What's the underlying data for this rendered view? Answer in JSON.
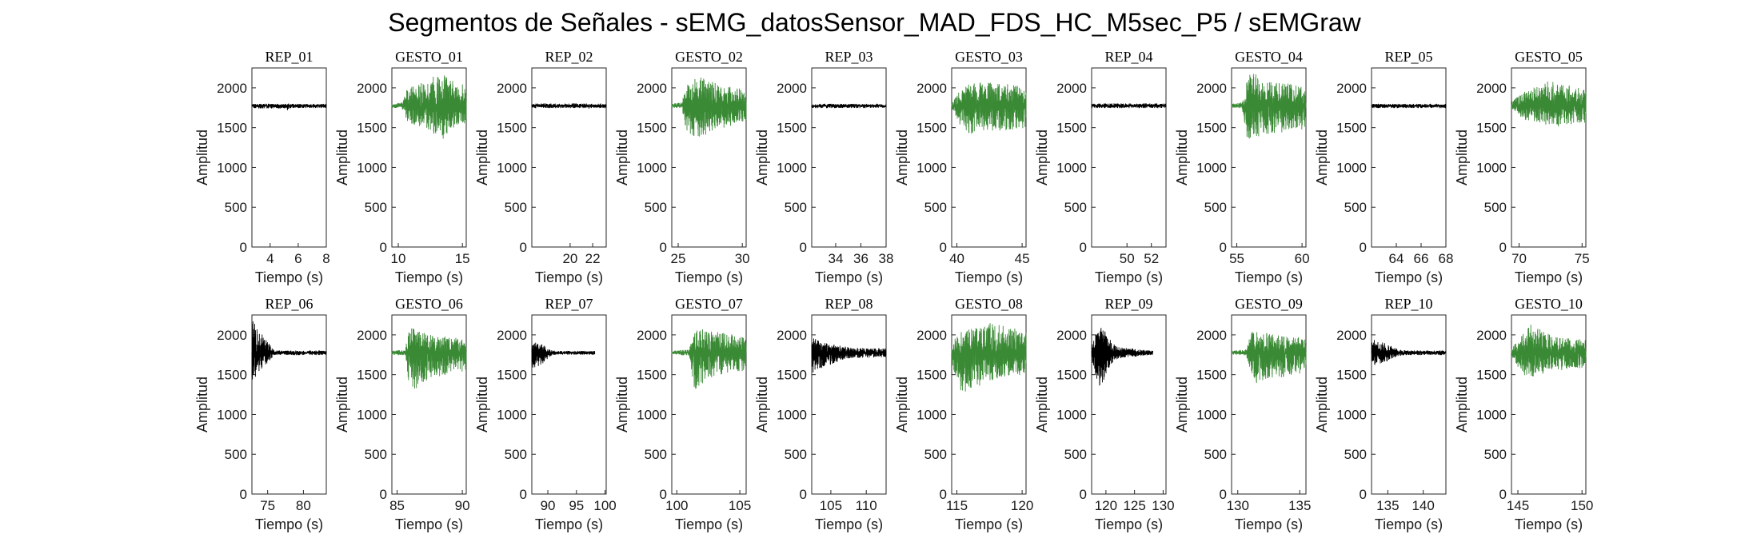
{
  "title": "Segmentos de Señales - sEMG_datosSensor_MAD_FDS_HC_M5sec_P5 / sEMGraw",
  "colors": {
    "rep": "#000000",
    "gesto": "#3a8a35"
  },
  "chart_data": [
    {
      "type": "line",
      "title": "REP_01",
      "kind": "rep",
      "xlabel": "Tiempo (s)",
      "ylabel": "Amplitud",
      "xlim": [
        2.7,
        8
      ],
      "xticks": [
        4,
        6,
        8
      ],
      "ylim": [
        0,
        2250
      ],
      "yticks": [
        0,
        500,
        1000,
        1500,
        2000
      ],
      "series": [
        {
          "baseline": 1775,
          "x": [
            2.7,
            8
          ],
          "envelope": [
            [
              2.7,
              1740,
              1800
            ],
            [
              5.2,
              1740,
              1800
            ],
            [
              5.25,
              1690,
              1810
            ],
            [
              5.35,
              1745,
              1800
            ],
            [
              8,
              1745,
              1800
            ]
          ]
        }
      ]
    },
    {
      "type": "line",
      "title": "GESTO_01",
      "kind": "gesto",
      "xlabel": "Tiempo (s)",
      "ylabel": "Amplitud",
      "xlim": [
        9.5,
        15.3
      ],
      "xticks": [
        10,
        15
      ],
      "ylim": [
        0,
        2250
      ],
      "yticks": [
        0,
        500,
        1000,
        1500,
        2000
      ],
      "series": [
        {
          "baseline": 1775,
          "x": [
            9.5,
            15.3
          ],
          "envelope": [
            [
              9.5,
              1750,
              1800
            ],
            [
              10.3,
              1740,
              1820
            ],
            [
              10.6,
              1580,
              1980
            ],
            [
              12.5,
              1450,
              2130
            ],
            [
              13.5,
              1350,
              2200
            ],
            [
              14.5,
              1500,
              2050
            ],
            [
              15.3,
              1550,
              2050
            ]
          ]
        }
      ]
    },
    {
      "type": "line",
      "title": "REP_02",
      "kind": "rep",
      "xlabel": "Tiempo (s)",
      "ylabel": "Amplitud",
      "xlim": [
        16.6,
        23.2
      ],
      "xticks": [
        20,
        22
      ],
      "ylim": [
        0,
        2250
      ],
      "yticks": [
        0,
        500,
        1000,
        1500,
        2000
      ],
      "series": [
        {
          "baseline": 1775,
          "x": [
            16.6,
            23.2
          ],
          "envelope": [
            [
              16.6,
              1745,
              1805
            ],
            [
              21.5,
              1745,
              1805
            ],
            [
              21.6,
              1640,
              1800
            ],
            [
              21.7,
              1745,
              1805
            ],
            [
              23.2,
              1745,
              1805
            ]
          ]
        }
      ]
    },
    {
      "type": "line",
      "title": "GESTO_02",
      "kind": "gesto",
      "xlabel": "Tiempo (s)",
      "ylabel": "Amplitud",
      "xlim": [
        24.5,
        30.3
      ],
      "xticks": [
        25,
        30
      ],
      "ylim": [
        0,
        2250
      ],
      "yticks": [
        0,
        500,
        1000,
        1500,
        2000
      ],
      "series": [
        {
          "baseline": 1775,
          "x": [
            24.5,
            30.3
          ],
          "envelope": [
            [
              24.5,
              1750,
              1800
            ],
            [
              25.3,
              1740,
              1820
            ],
            [
              25.6,
              1450,
              2050
            ],
            [
              26.5,
              1350,
              2150
            ],
            [
              28,
              1480,
              2060
            ],
            [
              30.3,
              1560,
              1980
            ]
          ]
        }
      ]
    },
    {
      "type": "line",
      "title": "REP_03",
      "kind": "rep",
      "xlabel": "Tiempo (s)",
      "ylabel": "Amplitud",
      "xlim": [
        32.1,
        38
      ],
      "xticks": [
        34,
        36,
        38
      ],
      "ylim": [
        0,
        2250
      ],
      "yticks": [
        0,
        500,
        1000,
        1500,
        2000
      ],
      "series": [
        {
          "baseline": 1775,
          "x": [
            32.1,
            38
          ],
          "envelope": [
            [
              32.1,
              1745,
              1800
            ],
            [
              38,
              1745,
              1800
            ]
          ]
        }
      ]
    },
    {
      "type": "line",
      "title": "GESTO_03",
      "kind": "gesto",
      "xlabel": "Tiempo (s)",
      "ylabel": "Amplitud",
      "xlim": [
        39.6,
        45.3
      ],
      "xticks": [
        40,
        45
      ],
      "ylim": [
        0,
        2250
      ],
      "yticks": [
        0,
        500,
        1000,
        1500,
        2000
      ],
      "series": [
        {
          "baseline": 1775,
          "x": [
            39.6,
            45.3
          ],
          "envelope": [
            [
              39.6,
              1750,
              1800
            ],
            [
              40.1,
              1550,
              1950
            ],
            [
              41,
              1420,
              2080
            ],
            [
              43,
              1450,
              2060
            ],
            [
              45.3,
              1500,
              2050
            ]
          ]
        }
      ]
    },
    {
      "type": "line",
      "title": "REP_04",
      "kind": "rep",
      "xlabel": "Tiempo (s)",
      "ylabel": "Amplitud",
      "xlim": [
        47.1,
        53.2
      ],
      "xticks": [
        50,
        52
      ],
      "ylim": [
        0,
        2250
      ],
      "yticks": [
        0,
        500,
        1000,
        1500,
        2000
      ],
      "series": [
        {
          "baseline": 1775,
          "x": [
            47.1,
            53.2
          ],
          "envelope": [
            [
              47.1,
              1745,
              1805
            ],
            [
              53.2,
              1745,
              1805
            ]
          ]
        }
      ]
    },
    {
      "type": "line",
      "title": "GESTO_04",
      "kind": "gesto",
      "xlabel": "Tiempo (s)",
      "ylabel": "Amplitud",
      "xlim": [
        54.6,
        60.3
      ],
      "xticks": [
        55,
        60
      ],
      "ylim": [
        0,
        2250
      ],
      "yticks": [
        0,
        500,
        1000,
        1500,
        2000
      ],
      "series": [
        {
          "baseline": 1775,
          "x": [
            54.6,
            60.3
          ],
          "envelope": [
            [
              54.6,
              1750,
              1800
            ],
            [
              55.4,
              1740,
              1820
            ],
            [
              55.8,
              1350,
              2200
            ],
            [
              57.5,
              1420,
              2120
            ],
            [
              60.3,
              1480,
              2000
            ]
          ]
        }
      ]
    },
    {
      "type": "line",
      "title": "REP_05",
      "kind": "rep",
      "xlabel": "Tiempo (s)",
      "ylabel": "Amplitud",
      "xlim": [
        62,
        68
      ],
      "xticks": [
        64,
        66,
        68
      ],
      "ylim": [
        0,
        2250
      ],
      "yticks": [
        0,
        500,
        1000,
        1500,
        2000
      ],
      "series": [
        {
          "baseline": 1775,
          "x": [
            62,
            68
          ],
          "envelope": [
            [
              62,
              1745,
              1800
            ],
            [
              68,
              1745,
              1800
            ]
          ]
        }
      ]
    },
    {
      "type": "line",
      "title": "GESTO_05",
      "kind": "gesto",
      "xlabel": "Tiempo (s)",
      "ylabel": "Amplitud",
      "xlim": [
        69.4,
        75.3
      ],
      "xticks": [
        70,
        75
      ],
      "ylim": [
        0,
        2250
      ],
      "yticks": [
        0,
        500,
        1000,
        1500,
        2000
      ],
      "series": [
        {
          "baseline": 1775,
          "x": [
            69.4,
            75.3
          ],
          "envelope": [
            [
              69.4,
              1740,
              1830
            ],
            [
              70.4,
              1600,
              1950
            ],
            [
              72.5,
              1500,
              2100
            ],
            [
              75.3,
              1560,
              1980
            ]
          ]
        }
      ]
    },
    {
      "type": "line",
      "title": "REP_06",
      "kind": "rep",
      "xlabel": "Tiempo (s)",
      "ylabel": "Amplitud",
      "xlim": [
        72.8,
        83.2
      ],
      "xticks": [
        75,
        80
      ],
      "ylim": [
        0,
        2250
      ],
      "yticks": [
        0,
        500,
        1000,
        1500,
        2000
      ],
      "series": [
        {
          "baseline": 1775,
          "x": [
            72.8,
            83.2
          ],
          "envelope": [
            [
              72.8,
              1400,
              2200
            ],
            [
              74,
              1550,
              2050
            ],
            [
              75.3,
              1680,
              1880
            ],
            [
              76,
              1745,
              1805
            ],
            [
              83.2,
              1745,
              1805
            ]
          ]
        }
      ]
    },
    {
      "type": "line",
      "title": "GESTO_06",
      "kind": "gesto",
      "xlabel": "Tiempo (s)",
      "ylabel": "Amplitud",
      "xlim": [
        84.6,
        90.3
      ],
      "xticks": [
        85,
        90
      ],
      "ylim": [
        0,
        2250
      ],
      "yticks": [
        0,
        500,
        1000,
        1500,
        2000
      ],
      "series": [
        {
          "baseline": 1775,
          "x": [
            84.6,
            90.3
          ],
          "envelope": [
            [
              84.6,
              1750,
              1800
            ],
            [
              85.6,
              1740,
              1820
            ],
            [
              86,
              1250,
              2100
            ],
            [
              87.5,
              1450,
              2000
            ],
            [
              90.3,
              1550,
              1950
            ]
          ]
        }
      ]
    },
    {
      "type": "line",
      "title": "REP_07",
      "kind": "rep",
      "xlabel": "Tiempo (s)",
      "ylabel": "Amplitud",
      "xlim": [
        87.2,
        100.2
      ],
      "xticks": [
        90,
        95,
        100
      ],
      "ylim": [
        0,
        2250
      ],
      "yticks": [
        0,
        500,
        1000,
        1500,
        2000
      ],
      "series": [
        {
          "baseline": 1775,
          "x": [
            87.2,
            98.2
          ],
          "envelope": [
            [
              87.2,
              1560,
              1930
            ],
            [
              89,
              1630,
              1880
            ],
            [
              90.5,
              1730,
              1810
            ],
            [
              91.5,
              1750,
              1800
            ],
            [
              98.2,
              1750,
              1800
            ]
          ]
        }
      ]
    },
    {
      "type": "line",
      "title": "GESTO_07",
      "kind": "gesto",
      "xlabel": "Tiempo (s)",
      "ylabel": "Amplitud",
      "xlim": [
        99.6,
        105.5
      ],
      "xticks": [
        100,
        105
      ],
      "ylim": [
        0,
        2250
      ],
      "yticks": [
        0,
        500,
        1000,
        1500,
        2000
      ],
      "series": [
        {
          "baseline": 1775,
          "x": [
            99.6,
            105.5
          ],
          "envelope": [
            [
              99.6,
              1750,
              1800
            ],
            [
              101,
              1740,
              1820
            ],
            [
              101.4,
              1300,
              2100
            ],
            [
              103,
              1480,
              2050
            ],
            [
              105.5,
              1550,
              2000
            ]
          ]
        }
      ]
    },
    {
      "type": "line",
      "title": "REP_08",
      "kind": "rep",
      "xlabel": "Tiempo (s)",
      "ylabel": "Amplitud",
      "xlim": [
        102.3,
        112.8
      ],
      "xticks": [
        105,
        110
      ],
      "ylim": [
        0,
        2250
      ],
      "yticks": [
        0,
        500,
        1000,
        1500,
        2000
      ],
      "series": [
        {
          "baseline": 1775,
          "x": [
            102.3,
            112.8
          ],
          "envelope": [
            [
              102.3,
              1520,
              1970
            ],
            [
              104.2,
              1600,
              1900
            ],
            [
              106.5,
              1680,
              1860
            ],
            [
              108,
              1710,
              1840
            ],
            [
              112.8,
              1720,
              1830
            ]
          ]
        }
      ]
    },
    {
      "type": "line",
      "title": "GESTO_08",
      "kind": "gesto",
      "xlabel": "Tiempo (s)",
      "ylabel": "Amplitud",
      "xlim": [
        114.6,
        120.3
      ],
      "xticks": [
        115,
        120
      ],
      "ylim": [
        0,
        2250
      ],
      "yticks": [
        0,
        500,
        1000,
        1500,
        2000
      ],
      "series": [
        {
          "baseline": 1775,
          "x": [
            114.6,
            120.3
          ],
          "envelope": [
            [
              114.6,
              1650,
              1900
            ],
            [
              115.3,
              1250,
              2050
            ],
            [
              117.5,
              1400,
              2150
            ],
            [
              120.3,
              1500,
              2050
            ]
          ]
        }
      ]
    },
    {
      "type": "line",
      "title": "REP_09",
      "kind": "rep",
      "xlabel": "Tiempo (s)",
      "ylabel": "Amplitud",
      "xlim": [
        117.5,
        130.5
      ],
      "xticks": [
        120,
        125,
        130
      ],
      "ylim": [
        0,
        2250
      ],
      "yticks": [
        0,
        500,
        1000,
        1500,
        2000
      ],
      "series": [
        {
          "baseline": 1775,
          "x": [
            117.5,
            128.2
          ],
          "envelope": [
            [
              117.5,
              1700,
              1850
            ],
            [
              118.8,
              1300,
              2180
            ],
            [
              120.5,
              1580,
              1960
            ],
            [
              122,
              1700,
              1850
            ],
            [
              128.2,
              1750,
              1800
            ]
          ]
        }
      ]
    },
    {
      "type": "line",
      "title": "GESTO_09",
      "kind": "gesto",
      "xlabel": "Tiempo (s)",
      "ylabel": "Amplitud",
      "xlim": [
        129.5,
        135.5
      ],
      "xticks": [
        130,
        135
      ],
      "ylim": [
        0,
        2250
      ],
      "yticks": [
        0,
        500,
        1000,
        1500,
        2000
      ],
      "series": [
        {
          "baseline": 1775,
          "x": [
            129.5,
            135.5
          ],
          "envelope": [
            [
              129.5,
              1750,
              1800
            ],
            [
              130.7,
              1740,
              1820
            ],
            [
              131.1,
              1380,
              2070
            ],
            [
              133,
              1450,
              2000
            ],
            [
              135.5,
              1520,
              1960
            ]
          ]
        }
      ]
    },
    {
      "type": "line",
      "title": "REP_10",
      "kind": "rep",
      "xlabel": "Tiempo (s)",
      "ylabel": "Amplitud",
      "xlim": [
        132.7,
        143.2
      ],
      "xticks": [
        135,
        140
      ],
      "ylim": [
        0,
        2250
      ],
      "yticks": [
        0,
        500,
        1000,
        1500,
        2000
      ],
      "series": [
        {
          "baseline": 1775,
          "x": [
            132.7,
            143.2
          ],
          "envelope": [
            [
              132.7,
              1580,
              1950
            ],
            [
              134.5,
              1650,
              1900
            ],
            [
              136.5,
              1730,
              1820
            ],
            [
              137.5,
              1745,
              1805
            ],
            [
              143.2,
              1745,
              1805
            ]
          ]
        }
      ]
    },
    {
      "type": "line",
      "title": "GESTO_10",
      "kind": "gesto",
      "xlabel": "Tiempo (s)",
      "ylabel": "Amplitud",
      "xlim": [
        144.5,
        150.3
      ],
      "xticks": [
        145,
        150
      ],
      "ylim": [
        0,
        2250
      ],
      "yticks": [
        0,
        500,
        1000,
        1500,
        2000
      ],
      "series": [
        {
          "baseline": 1775,
          "x": [
            144.5,
            150.3
          ],
          "envelope": [
            [
              144.5,
              1740,
              1830
            ],
            [
              145.3,
              1500,
              2000
            ],
            [
              146,
              1450,
              2130
            ],
            [
              148,
              1550,
              1970
            ],
            [
              150.3,
              1580,
              1950
            ]
          ]
        }
      ]
    }
  ]
}
